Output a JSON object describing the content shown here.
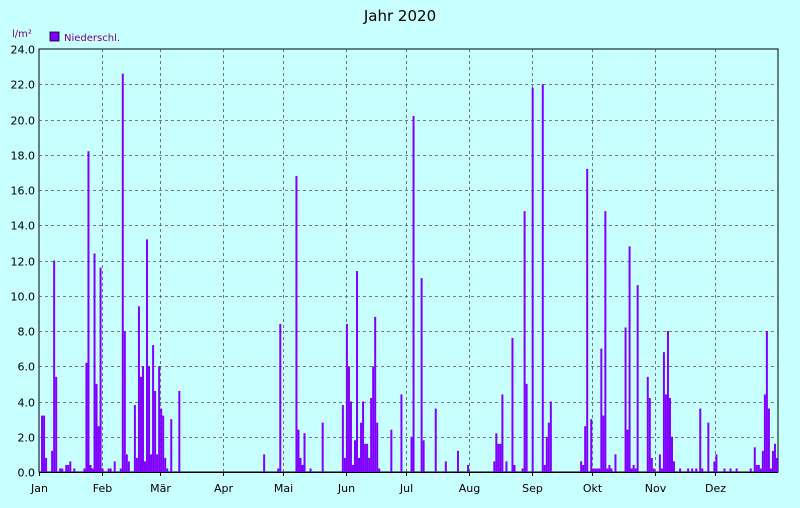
{
  "chart_data": {
    "type": "bar",
    "title": "Jahr 2020",
    "ylabel": "l/m²",
    "xlabel": "",
    "legend": {
      "position": "top-left",
      "entries": [
        "Niederschl."
      ]
    },
    "ylim": [
      0,
      24.0
    ],
    "yticks": [
      "0.0",
      "2.0",
      "4.0",
      "6.0",
      "8.0",
      "10.0",
      "12.0",
      "14.0",
      "16.0",
      "18.0",
      "20.0",
      "22.0",
      "24.0"
    ],
    "xtick_labels": [
      "Jan",
      "Feb",
      "Mär",
      "Apr",
      "Mai",
      "Jun",
      "Jul",
      "Aug",
      "Sep",
      "Okt",
      "Nov",
      "Dez"
    ],
    "grid": true,
    "colors": {
      "bar": "#8000ff",
      "grid": "#000000",
      "axis_text": "#000000",
      "title": "#000000",
      "ylabel": "#800080"
    },
    "series": [
      {
        "name": "Niederschl.",
        "days": [
          2,
          3,
          4,
          7,
          8,
          9,
          11,
          12,
          14,
          15,
          16,
          18,
          23,
          24,
          25,
          26,
          27,
          28,
          29,
          30,
          31,
          32,
          35,
          36,
          38,
          41,
          42,
          43,
          44,
          45,
          48,
          49,
          50,
          51,
          52,
          53,
          54,
          55,
          56,
          57,
          58,
          59,
          60,
          61,
          62,
          63,
          64,
          66,
          70,
          112,
          119,
          120,
          128,
          129,
          130,
          131,
          132,
          135,
          141,
          151,
          152,
          153,
          154,
          155,
          156,
          157,
          158,
          159,
          160,
          161,
          162,
          163,
          164,
          165,
          166,
          167,
          168,
          169,
          175,
          180,
          185,
          186,
          190,
          191,
          197,
          202,
          208,
          213,
          226,
          227,
          228,
          229,
          230,
          232,
          235,
          236,
          240,
          241,
          242,
          245,
          250,
          251,
          252,
          253,
          254,
          269,
          270,
          271,
          272,
          274,
          275,
          276,
          277,
          278,
          279,
          280,
          281,
          282,
          283,
          284,
          286,
          291,
          292,
          293,
          294,
          295,
          296,
          297,
          302,
          303,
          304,
          305,
          308,
          309,
          310,
          311,
          312,
          313,
          314,
          315,
          318,
          322,
          324,
          326,
          328,
          329,
          332,
          335,
          336,
          340,
          343,
          346,
          353,
          355,
          356,
          357,
          358,
          359,
          360,
          361,
          362,
          363,
          364,
          365,
          366
        ],
        "values": [
          3.2,
          3.2,
          0.8,
          1.2,
          12.0,
          5.4,
          0.2,
          0.2,
          0.4,
          0.4,
          0.6,
          0.2,
          0.2,
          6.2,
          18.2,
          0.4,
          0.2,
          12.4,
          5.0,
          2.6,
          11.6,
          0.2,
          0.2,
          0.2,
          0.6,
          0.2,
          22.6,
          8.0,
          1.0,
          0.6,
          3.8,
          0.8,
          9.4,
          5.4,
          6.0,
          0.6,
          13.2,
          6.0,
          1.0,
          7.2,
          4.6,
          1.0,
          6.0,
          3.6,
          3.2,
          0.8,
          0.2,
          3.0,
          4.6,
          1.0,
          0.2,
          8.4,
          16.8,
          2.4,
          0.8,
          0.4,
          2.2,
          0.2,
          2.8,
          3.8,
          0.8,
          8.4,
          6.0,
          4.0,
          0.4,
          1.8,
          11.4,
          0.8,
          2.8,
          4.0,
          1.6,
          1.6,
          0.8,
          4.2,
          6.0,
          8.8,
          2.8,
          0.2,
          2.4,
          4.4,
          2.0,
          20.2,
          11.0,
          1.8,
          3.6,
          0.6,
          1.2,
          0.4,
          0.6,
          2.2,
          1.6,
          1.6,
          4.4,
          0.6,
          7.6,
          0.4,
          0.2,
          14.8,
          5.0,
          21.8,
          22.0,
          0.4,
          2.0,
          2.8,
          4.0,
          0.6,
          0.4,
          2.6,
          17.2,
          3.0,
          0.2,
          0.2,
          0.2,
          0.2,
          7.0,
          3.2,
          14.8,
          0.2,
          0.4,
          0.2,
          1.0,
          8.2,
          2.4,
          12.8,
          0.2,
          0.4,
          0.2,
          10.6,
          5.4,
          4.2,
          0.8,
          0.2,
          1.0,
          0.2,
          6.8,
          4.4,
          8.0,
          4.2,
          2.0,
          0.6,
          0.2,
          0.2,
          0.2,
          0.2,
          3.6,
          0.2,
          2.8,
          0.6,
          1.0,
          0.2,
          0.2,
          0.2,
          0.2,
          1.4,
          0.4,
          0.4,
          0.2,
          1.2,
          4.4,
          8.0,
          3.6,
          0.2,
          1.2,
          1.6,
          0.8
        ]
      }
    ]
  }
}
